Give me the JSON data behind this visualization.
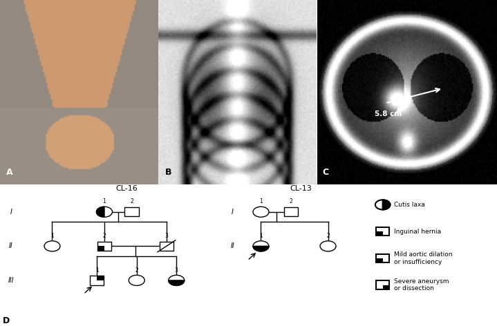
{
  "panel_labels": [
    "A",
    "B",
    "C",
    "D"
  ],
  "cl16_label": "CL-16",
  "cl13_label": "CL-13",
  "legend_items": [
    {
      "label": "Cutis laxa"
    },
    {
      "label": "Inguinal hernia"
    },
    {
      "label": "Mild aortic dilation\nor insufficiency"
    },
    {
      "label": "Severe aneurysm\nor dissection"
    }
  ],
  "bg_color": "#ffffff",
  "line_color": "#000000",
  "text_color": "#000000",
  "measurement_text": "5.8 cm",
  "generation_labels": [
    "I",
    "II",
    "III"
  ],
  "generation_labels_cl13": [
    "I",
    "II"
  ]
}
